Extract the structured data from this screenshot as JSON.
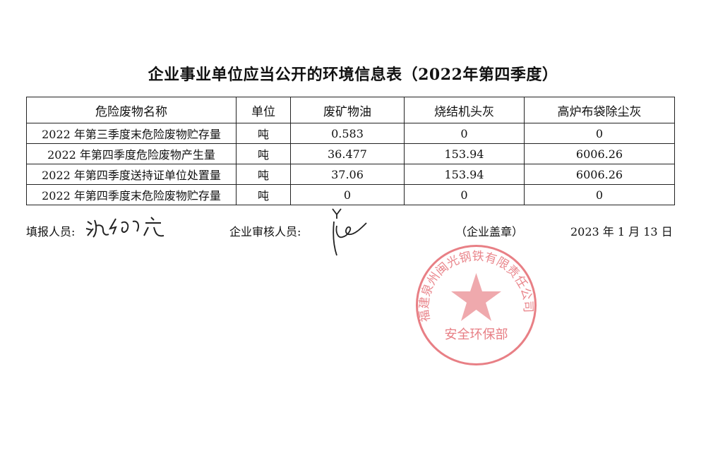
{
  "title": "企业事业单位应当公开的环境信息表（2022年第四季度）",
  "table": {
    "headers": [
      "危险废物名称",
      "单位",
      "废矿物油",
      "烧结机头灰",
      "高炉布袋除尘灰"
    ],
    "rows": [
      [
        "2022 年第三季度末危险废物贮存量",
        "吨",
        "0.583",
        "0",
        "0"
      ],
      [
        "2022 年第四季度危险废物产生量",
        "吨",
        "36.477",
        "153.94",
        "6006.26"
      ],
      [
        "2022 年第四季度送持证单位处置量",
        "吨",
        "37.06",
        "153.94",
        "6006.26"
      ],
      [
        "2022 年第四季度末危险废物贮存量",
        "吨",
        "0",
        "0",
        "0"
      ]
    ]
  },
  "footer": {
    "reporter_label": "填报人员:",
    "reviewer_label": "企业审核人员:",
    "seal_label": "（企业盖章）",
    "date": "2023 年 1 月 13 日"
  },
  "stamp": {
    "outer_text": "福建泉州闽光钢铁有限责任公司",
    "inner_text": "安全环保部",
    "color": "#e0545c"
  }
}
